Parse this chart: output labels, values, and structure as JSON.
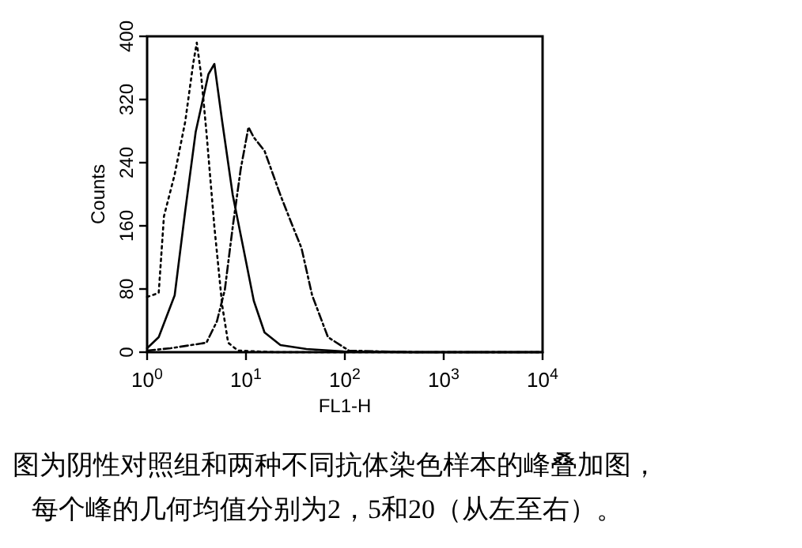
{
  "chart_data": {
    "type": "line",
    "log": "x",
    "xlabel": "FL1-H",
    "ylabel": "Counts",
    "xlim": [
      1,
      10000
    ],
    "ylim": [
      0,
      400
    ],
    "xticks": [
      {
        "value": 1,
        "label": "10$^{0}$"
      },
      {
        "value": 10,
        "label": "10$^{1}$"
      },
      {
        "value": 100,
        "label": "10$^{2}$"
      },
      {
        "value": 1000,
        "label": "10$^{3}$"
      },
      {
        "value": 10000,
        "label": "10$^{4}$"
      }
    ],
    "yticks": [
      0,
      80,
      160,
      240,
      320,
      400
    ],
    "grid": false,
    "series": [
      {
        "color": "#000000",
        "line_style": "dotted",
        "x": [
          1,
          1.31,
          1.48,
          1.9,
          2.43,
          2.92,
          3.18,
          3.51,
          3.98,
          4.79,
          5.75,
          6.6,
          8.3,
          19.6,
          10000
        ],
        "values": [
          70,
          75,
          172,
          225,
          292,
          365,
          392,
          352,
          279,
          159,
          59,
          12,
          2,
          0,
          0
        ]
      },
      {
        "color": "#000000",
        "line_style": "solid",
        "x": [
          1,
          1.31,
          1.9,
          2.43,
          3.1,
          4.17,
          4.79,
          5.75,
          7.35,
          9.4,
          12,
          15.4,
          22.3,
          40.9,
          97,
          480,
          10000
        ],
        "values": [
          5,
          19,
          72,
          179,
          279,
          352,
          365,
          292,
          199,
          132,
          65,
          25,
          9,
          4,
          1,
          0,
          0
        ]
      },
      {
        "color": "#000000",
        "line_style": "dashdot",
        "x": [
          1,
          1.73,
          3.98,
          5.08,
          6.11,
          7.35,
          8.85,
          10.6,
          12,
          15.4,
          22.3,
          28.5,
          36.4,
          46.7,
          67.5,
          110,
          480,
          10000
        ],
        "values": [
          2,
          5,
          12,
          39,
          79,
          159,
          232,
          285,
          272,
          255,
          199,
          165,
          132,
          72,
          19,
          2,
          0,
          0
        ]
      }
    ],
    "annotations": [
      "图为阴性对照组和两种不同抗体染色样本的峰叠加图，",
      "每个峰的几何均值分别为2，5和20（从左至右）。"
    ]
  }
}
